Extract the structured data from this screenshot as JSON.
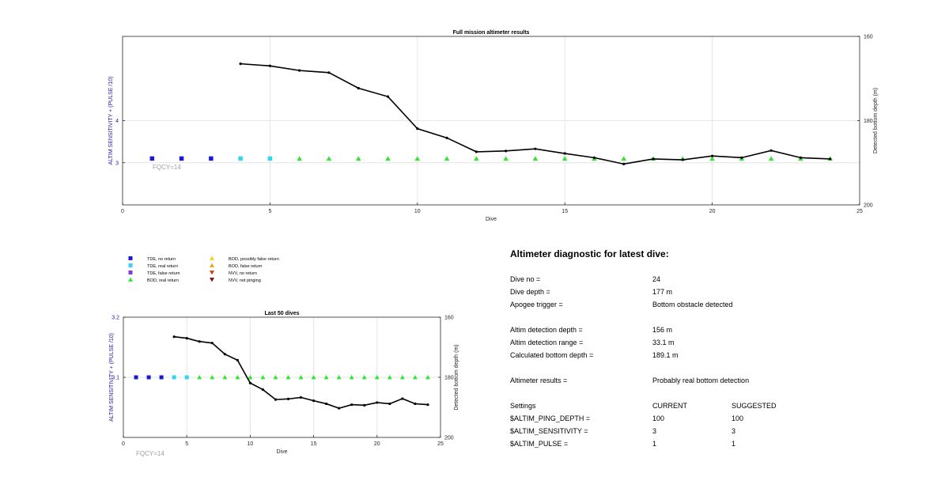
{
  "colors": {
    "tde_no_return": "#1a1ad6",
    "tde_real_return": "#33d6f0",
    "tde_false_return": "#7a3fd0",
    "bod_real_return": "#2ee82e",
    "bod_possibly_false": "#f2d21a",
    "bod_false": "#f2a21a",
    "nvv_no_return": "#d23a1a",
    "nvv_not_pinging": "#7a1010",
    "depth_line": "#000000",
    "axis_label_left": "#2020b0",
    "fqcy": "#a0a0a0"
  },
  "legend": [
    {
      "label": "TDE, no return",
      "key": "tde_no_return",
      "shape": "square"
    },
    {
      "label": "TDE, real return",
      "key": "tde_real_return",
      "shape": "square"
    },
    {
      "label": "TDE, false return",
      "key": "tde_false_return",
      "shape": "square"
    },
    {
      "label": "BOD, real return",
      "key": "bod_real_return",
      "shape": "triangle-up"
    },
    {
      "label": "BOD, possibly false return",
      "key": "bod_possibly_false",
      "shape": "triangle-up"
    },
    {
      "label": "BOD, false return",
      "key": "bod_false",
      "shape": "triangle-up"
    },
    {
      "label": "NVV, no return",
      "key": "nvv_no_return",
      "shape": "triangle-down"
    },
    {
      "label": "NVV, not pinging",
      "key": "nvv_not_pinging",
      "shape": "triangle-down"
    }
  ],
  "chart_data": [
    {
      "type": "line",
      "title": "Full mission altimeter results",
      "xlabel": "Dive",
      "ylabel": "ALTIM SENSITIVITY + (PULSE /10)",
      "ylabel_right": "Detected bottom depth (m)",
      "annotation": "FQCY=14",
      "xlim": [
        0,
        25
      ],
      "ylim": [
        2,
        6
      ],
      "ylim_right": [
        160,
        200
      ],
      "right_axis_reversed": true,
      "x_ticks": [
        0,
        5,
        10,
        15,
        20,
        25
      ],
      "y_ticks": [
        3,
        4
      ],
      "y_ticks_right": [
        160,
        180,
        200
      ],
      "grid": true,
      "series": [
        {
          "name": "TDE, no return",
          "key": "tde_no_return",
          "shape": "square",
          "x": [
            1,
            2,
            3
          ],
          "y": [
            3.1,
            3.1,
            3.1
          ]
        },
        {
          "name": "TDE, real return",
          "key": "tde_real_return",
          "shape": "square",
          "x": [
            4,
            5
          ],
          "y": [
            3.1,
            3.1
          ]
        },
        {
          "name": "BOD, real return",
          "key": "bod_real_return",
          "shape": "triangle-up",
          "x": [
            6,
            7,
            8,
            9,
            10,
            11,
            12,
            13,
            14,
            15,
            16,
            17,
            18,
            19,
            20,
            21,
            22,
            23,
            24
          ],
          "y": [
            3.1,
            3.1,
            3.1,
            3.1,
            3.1,
            3.1,
            3.1,
            3.1,
            3.1,
            3.1,
            3.1,
            3.1,
            3.1,
            3.1,
            3.1,
            3.1,
            3.1,
            3.1,
            3.1
          ]
        },
        {
          "key": "depth_line",
          "shape": "line",
          "axis": "right",
          "x": [
            4,
            5,
            6,
            7,
            8,
            9,
            10,
            11,
            12,
            13,
            14,
            15,
            16,
            17,
            18,
            19,
            20,
            21,
            22,
            23,
            24
          ],
          "y": [
            166.5,
            167,
            168.1,
            168.6,
            172.3,
            174.3,
            181.9,
            184.1,
            187.4,
            187.2,
            186.7,
            187.8,
            188.8,
            190.3,
            189.1,
            189.3,
            188.4,
            188.8,
            187.1,
            188.8,
            189.1
          ]
        }
      ]
    },
    {
      "type": "line",
      "title": "Last 50 dives",
      "xlabel": "Dive",
      "ylabel": "ALTIM SENSITIVITY + (PULSE /10)",
      "ylabel_right": "Detected bottom depth (m)",
      "annotation": "FQCY=14",
      "xlim": [
        0,
        25
      ],
      "ylim": [
        3.0,
        3.2
      ],
      "ylim_right": [
        160,
        200
      ],
      "right_axis_reversed": true,
      "x_ticks": [
        0,
        5,
        10,
        15,
        20,
        25
      ],
      "y_ticks": [
        3.1,
        3.2
      ],
      "y_ticks_right": [
        160,
        180,
        200
      ],
      "grid": true,
      "series": [
        {
          "name": "TDE, no return",
          "key": "tde_no_return",
          "shape": "square",
          "x": [
            1,
            2,
            3
          ],
          "y": [
            3.1,
            3.1,
            3.1
          ]
        },
        {
          "name": "TDE, real return",
          "key": "tde_real_return",
          "shape": "square",
          "x": [
            4,
            5
          ],
          "y": [
            3.1,
            3.1
          ]
        },
        {
          "name": "BOD, real return",
          "key": "bod_real_return",
          "shape": "triangle-up",
          "x": [
            6,
            7,
            8,
            9,
            10,
            11,
            12,
            13,
            14,
            15,
            16,
            17,
            18,
            19,
            20,
            21,
            22,
            23,
            24
          ],
          "y": [
            3.1,
            3.1,
            3.1,
            3.1,
            3.1,
            3.1,
            3.1,
            3.1,
            3.1,
            3.1,
            3.1,
            3.1,
            3.1,
            3.1,
            3.1,
            3.1,
            3.1,
            3.1,
            3.1
          ]
        },
        {
          "key": "depth_line",
          "shape": "line",
          "axis": "right",
          "x": [
            4,
            5,
            6,
            7,
            8,
            9,
            10,
            11,
            12,
            13,
            14,
            15,
            16,
            17,
            18,
            19,
            20,
            21,
            22,
            23,
            24
          ],
          "y": [
            166.5,
            167,
            168.1,
            168.6,
            172.3,
            174.3,
            181.9,
            184.1,
            187.4,
            187.2,
            186.7,
            187.8,
            188.8,
            190.3,
            189.1,
            189.3,
            188.4,
            188.8,
            187.1,
            188.8,
            189.1
          ]
        }
      ]
    }
  ],
  "diagnostic": {
    "title": "Altimeter diagnostic for latest dive:",
    "rows": [
      {
        "label": "Dive no =",
        "value": "24"
      },
      {
        "label": "Dive depth =",
        "value": "177 m"
      },
      {
        "label": "Apogee trigger =",
        "value": "Bottom obstacle detected"
      },
      {
        "label": "Altim detection depth =",
        "value": "156 m"
      },
      {
        "label": "Altim detection range =",
        "value": "33.1 m"
      },
      {
        "label": "Calculated bottom depth =",
        "value": "189.1 m"
      },
      {
        "label": "Altimeter results =",
        "value": "Probably real bottom detection"
      }
    ],
    "settings_header": {
      "label": "Settings",
      "current": "CURRENT",
      "suggested": "SUGGESTED"
    },
    "settings": [
      {
        "label": "$ALTIM_PING_DEPTH =",
        "current": "100",
        "suggested": "100"
      },
      {
        "label": "$ALTIM_SENSITIVITY =",
        "current": "3",
        "suggested": "3"
      },
      {
        "label": "$ALTIM_PULSE =",
        "current": "1",
        "suggested": "1"
      }
    ]
  }
}
